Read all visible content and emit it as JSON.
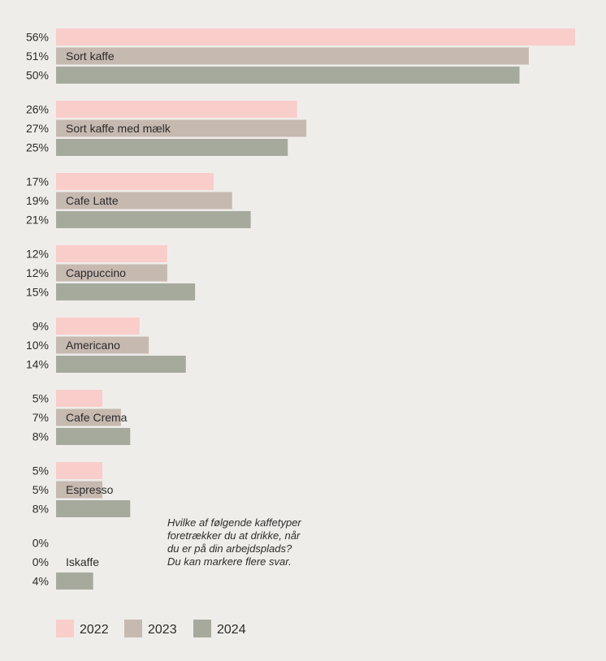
{
  "chart_data": {
    "type": "bar",
    "orientation": "horizontal",
    "categories": [
      "Sort kaffe",
      "Sort kaffe med mælk",
      "Cafe Latte",
      "Cappuccino",
      "Americano",
      "Cafe Crema",
      "Espresso",
      "Iskaffe"
    ],
    "series": [
      {
        "name": "2022",
        "color": "#f9cdca",
        "values": [
          56,
          26,
          17,
          12,
          9,
          5,
          5,
          0
        ],
        "labels": [
          "56%",
          "26%",
          "17%",
          "12%",
          "9%",
          "5%",
          "5%",
          "0%"
        ]
      },
      {
        "name": "2023",
        "color": "#c6b9b0",
        "values": [
          51,
          27,
          19,
          12,
          10,
          7,
          5,
          0
        ],
        "labels": [
          "51%",
          "27%",
          "19%",
          "12%",
          "10%",
          "7%",
          "5%",
          "0%"
        ]
      },
      {
        "name": "2024",
        "color": "#a6aa9d",
        "values": [
          50,
          25,
          21,
          15,
          14,
          8,
          8,
          4
        ],
        "labels": [
          "50%",
          "25%",
          "21%",
          "15%",
          "14%",
          "8%",
          "8%",
          "4%"
        ]
      }
    ],
    "xlim": [
      0,
      56
    ],
    "legend_position": "bottom-left",
    "grid": false
  },
  "question": "Hvilke af følgende kaffetyper\nforetrækker du at drikke, når\ndu er på din arbejdsplads?\nDu kan markere flere svar."
}
